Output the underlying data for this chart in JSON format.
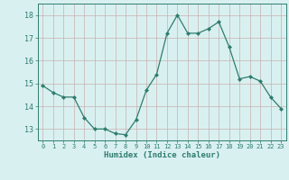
{
  "x": [
    0,
    1,
    2,
    3,
    4,
    5,
    6,
    7,
    8,
    9,
    10,
    11,
    12,
    13,
    14,
    15,
    16,
    17,
    18,
    19,
    20,
    21,
    22,
    23
  ],
  "y": [
    14.9,
    14.6,
    14.4,
    14.4,
    13.5,
    13.0,
    13.0,
    12.8,
    12.75,
    13.4,
    14.7,
    15.4,
    17.2,
    18.0,
    17.2,
    17.2,
    17.4,
    17.7,
    16.6,
    15.2,
    15.3,
    15.1,
    14.4,
    13.9
  ],
  "line_color": "#2e7d6e",
  "marker": "D",
  "marker_size": 2.0,
  "bg_color": "#d9f0f0",
  "grid_color_major": "#c8b0b0",
  "grid_color_minor": "#e0cccc",
  "xlabel": "Humidex (Indice chaleur)",
  "ylim": [
    12.5,
    18.5
  ],
  "xlim": [
    -0.5,
    23.5
  ],
  "yticks": [
    13,
    14,
    15,
    16,
    17,
    18
  ],
  "xticks": [
    0,
    1,
    2,
    3,
    4,
    5,
    6,
    7,
    8,
    9,
    10,
    11,
    12,
    13,
    14,
    15,
    16,
    17,
    18,
    19,
    20,
    21,
    22,
    23
  ],
  "xlabel_fontsize": 6.5,
  "xtick_fontsize": 5.0,
  "ytick_fontsize": 6.0
}
